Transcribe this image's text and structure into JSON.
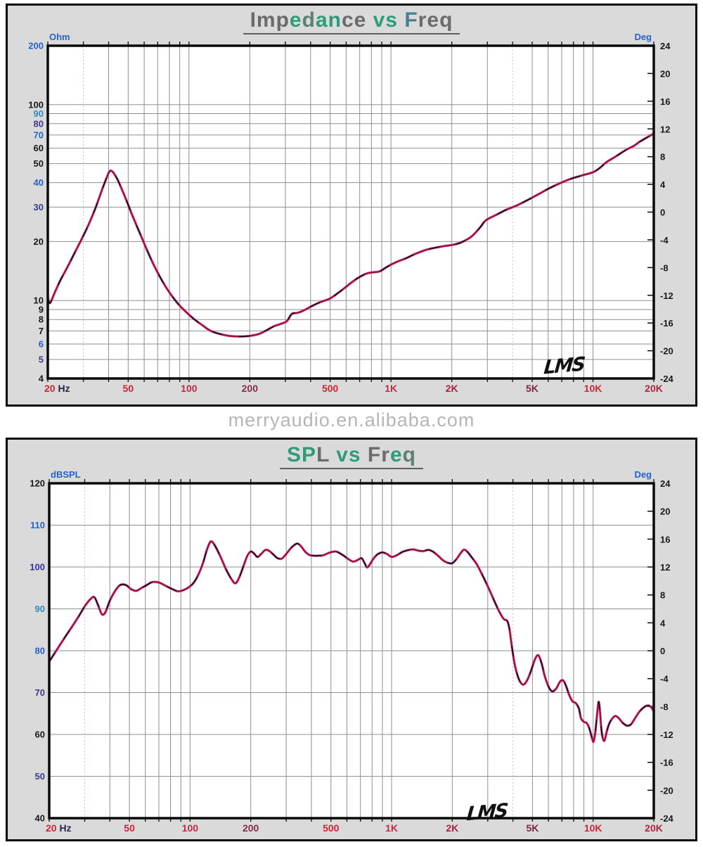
{
  "watermark": "merryaudio.en.alibaba.com",
  "chart_data": [
    {
      "type": "line",
      "title": "Impedance vs Freq",
      "title_letter_colors": [
        "#6b6b6b",
        "#6b6b6b",
        "#6b6b6b",
        "#2e9c7c",
        "#5d8077",
        "#2e9c7c",
        "#2e9c7c",
        "#6b6b6b",
        "#6b6b6b",
        "",
        "#2e9c7c",
        "#2e9c7c",
        "",
        "#47808f",
        "#6b6b6b",
        "#6b6b6b",
        "#6b6b6b"
      ],
      "logo": "LMS",
      "x_axis": {
        "scale": "log",
        "min": 20,
        "max": 20000,
        "minor": [
          20,
          30,
          40,
          50,
          60,
          70,
          80,
          90,
          100,
          200,
          300,
          400,
          500,
          600,
          700,
          800,
          900,
          1000,
          2000,
          3000,
          4000,
          5000,
          6000,
          7000,
          8000,
          9000,
          10000,
          20000
        ],
        "dotted": [
          30,
          4000
        ],
        "ticks": [
          {
            "f": 20,
            "label": "20",
            "color": "#cf2438",
            "suffix": " Hz",
            "suffix_color": "#26264f"
          },
          {
            "f": 50,
            "label": "50",
            "color": "#cf2438"
          },
          {
            "f": 100,
            "label": "100",
            "color": "#c22a48"
          },
          {
            "f": 200,
            "label": "200",
            "color": "#8c2a4a"
          },
          {
            "f": 500,
            "label": "500",
            "color": "#cf2438"
          },
          {
            "f": 1000,
            "label": "1K",
            "color": "#c22a48"
          },
          {
            "f": 2000,
            "label": "2K",
            "color": "#a82442"
          },
          {
            "f": 5000,
            "label": "5K",
            "color": "#7d2746"
          },
          {
            "f": 10000,
            "label": "10K",
            "color": "#cf2438"
          },
          {
            "f": 20000,
            "label": "20K",
            "color": "#b0243f"
          }
        ]
      },
      "y_left": {
        "unit": "Ohm",
        "unit_color": "#2563c9",
        "scale": "log",
        "min": 4,
        "max": 200,
        "ticks": [
          {
            "v": 200,
            "color": "#2563c9"
          },
          {
            "v": 100,
            "color": "#1a1a1a"
          },
          {
            "v": 90,
            "color": "#2b8fbf"
          },
          {
            "v": 80,
            "color": "#3b3b8f"
          },
          {
            "v": 70,
            "color": "#2563c9"
          },
          {
            "v": 60,
            "color": "#1a1a1a"
          },
          {
            "v": 50,
            "color": "#1a1a1a"
          },
          {
            "v": 40,
            "color": "#2563c9"
          },
          {
            "v": 30,
            "color": "#3b3b8f"
          },
          {
            "v": 20,
            "color": "#1a1a1a"
          },
          {
            "v": 10,
            "color": "#1a1a1a"
          },
          {
            "v": 9,
            "color": "#1a1a1a"
          },
          {
            "v": 8,
            "color": "#1a1a1a"
          },
          {
            "v": 7,
            "color": "#1a1a1a"
          },
          {
            "v": 6,
            "color": "#2563c9"
          },
          {
            "v": 5,
            "color": "#3b3b8f"
          },
          {
            "v": 4,
            "color": "#1a1a1a"
          }
        ]
      },
      "y_right": {
        "unit": "Deg",
        "unit_color": "#2563c9",
        "scale": "linear",
        "min": -24,
        "max": 24,
        "step": 4,
        "color": "#1a1a1a"
      },
      "curve_colors": {
        "underlay": "#f040e8",
        "main": "#9c1030",
        "dash": "#141414"
      },
      "series": [
        {
          "name": "impedance-ohm",
          "x": [
            20,
            20.5,
            21.5,
            23,
            25,
            27,
            29,
            31,
            33,
            35,
            37,
            39,
            40.5,
            42,
            44,
            46,
            49,
            52,
            55,
            59,
            63,
            68,
            74,
            80,
            87,
            95,
            105,
            116,
            128,
            142,
            158,
            178,
            200,
            222,
            245,
            264,
            285,
            305,
            323,
            345,
            370,
            400,
            435,
            470,
            500,
            545,
            590,
            640,
            700,
            760,
            820,
            880,
            960,
            1060,
            1180,
            1320,
            1480,
            1650,
            1850,
            2050,
            2250,
            2500,
            2750,
            2950,
            3300,
            3700,
            4200,
            4800,
            5400,
            6100,
            6900,
            7800,
            8800,
            10000,
            10800,
            11700,
            13000,
            14500,
            16000,
            17000,
            18500,
            20000
          ],
          "y": [
            10.4,
            9.7,
            10.8,
            12.6,
            14.8,
            17.3,
            20,
            23,
            26.6,
            31,
            36.5,
            42,
            45.8,
            45.3,
            42,
            38,
            32.5,
            27.8,
            24.2,
            20.4,
            17.4,
            14.7,
            12.5,
            11,
            9.8,
            8.9,
            8.1,
            7.5,
            7.0,
            6.75,
            6.6,
            6.55,
            6.6,
            6.75,
            7.1,
            7.4,
            7.6,
            7.85,
            8.55,
            8.65,
            8.9,
            9.3,
            9.7,
            10.0,
            10.25,
            10.9,
            11.6,
            12.4,
            13.2,
            13.75,
            13.95,
            14.1,
            14.9,
            15.7,
            16.4,
            17.3,
            18.1,
            18.6,
            19.0,
            19.3,
            19.9,
            21.2,
            23.5,
            25.7,
            27.3,
            29.0,
            30.6,
            32.8,
            35.0,
            37.5,
            39.8,
            41.9,
            43.5,
            45.2,
            47.5,
            51.0,
            54.5,
            58.6,
            61.8,
            64.6,
            68,
            71.2
          ]
        }
      ]
    },
    {
      "type": "line",
      "title": "SPL vs Freq",
      "title_letter_colors": [
        "#2e9c7c",
        "#2e9c7c",
        "#6b6b6b",
        "",
        "#2e9c7c",
        "#2e9c7c",
        "",
        "#6b6b6b",
        "#6b6b6b",
        "#2e9c7c",
        "#5d8077"
      ],
      "logo": "LMS",
      "x_axis": {
        "scale": "log",
        "min": 20,
        "max": 20000,
        "minor": [
          20,
          30,
          40,
          50,
          60,
          70,
          80,
          90,
          100,
          200,
          300,
          400,
          500,
          600,
          700,
          800,
          900,
          1000,
          2000,
          3000,
          4000,
          5000,
          6000,
          7000,
          8000,
          9000,
          10000,
          20000
        ],
        "dotted": [
          30,
          4000
        ],
        "ticks": [
          {
            "f": 20,
            "label": "20",
            "color": "#cf2438",
            "suffix": " Hz",
            "suffix_color": "#26264f"
          },
          {
            "f": 50,
            "label": "50",
            "color": "#cf2438"
          },
          {
            "f": 100,
            "label": "100",
            "color": "#c22a48"
          },
          {
            "f": 200,
            "label": "200",
            "color": "#8c2a4a"
          },
          {
            "f": 500,
            "label": "500",
            "color": "#cf2438"
          },
          {
            "f": 1000,
            "label": "1K",
            "color": "#c22a48"
          },
          {
            "f": 2000,
            "label": "2K",
            "color": "#a82442"
          },
          {
            "f": 5000,
            "label": "5K",
            "color": "#7d2746"
          },
          {
            "f": 10000,
            "label": "10K",
            "color": "#cf2438"
          },
          {
            "f": 20000,
            "label": "20K",
            "color": "#b0243f"
          }
        ]
      },
      "y_left": {
        "unit": "dBSPL",
        "unit_color": "#2563c9",
        "scale": "linear",
        "min": 40,
        "max": 120,
        "ticks": [
          {
            "v": 120,
            "color": "#1a1a1a"
          },
          {
            "v": 110,
            "color": "#2563c9"
          },
          {
            "v": 100,
            "color": "#32329a"
          },
          {
            "v": 90,
            "color": "#2b8fbf"
          },
          {
            "v": 80,
            "color": "#2563c9"
          },
          {
            "v": 70,
            "color": "#3b3b8f"
          },
          {
            "v": 60,
            "color": "#1a1a1a"
          },
          {
            "v": 50,
            "color": "#3b3b8f"
          },
          {
            "v": 40,
            "color": "#1a1a1a"
          }
        ]
      },
      "y_right": {
        "unit": "Deg",
        "unit_color": "#2563c9",
        "scale": "linear",
        "min": -24,
        "max": 24,
        "step": 4,
        "color": "#1a1a1a"
      },
      "curve_colors": {
        "underlay": "#f040e8",
        "main": "#9c1030",
        "dash": "#141414"
      },
      "series": [
        {
          "name": "spl-db",
          "x": [
            20,
            22,
            24,
            26,
            28,
            30,
            32,
            33.5,
            35,
            36.5,
            38,
            40,
            42.5,
            45,
            48,
            51,
            54,
            57,
            61,
            65,
            70,
            75,
            81,
            87,
            93,
            98,
            104,
            110,
            116,
            121,
            126,
            130,
            136,
            143,
            151,
            160,
            168,
            176,
            184,
            192,
            200,
            208,
            216,
            226,
            237,
            248,
            260,
            272,
            285,
            300,
            315,
            330,
            342,
            356,
            372,
            390,
            410,
            432,
            458,
            490,
            530,
            570,
            610,
            645,
            680,
            710,
            735,
            755,
            780,
            810,
            850,
            900,
            950,
            1000,
            1060,
            1130,
            1200,
            1280,
            1360,
            1440,
            1520,
            1600,
            1700,
            1800,
            1900,
            2000,
            2100,
            2200,
            2280,
            2360,
            2500,
            2650,
            2800,
            3000,
            3200,
            3400,
            3600,
            3750,
            3850,
            3950,
            4100,
            4300,
            4500,
            4700,
            4900,
            5150,
            5350,
            5550,
            5750,
            6000,
            6250,
            6550,
            6850,
            7100,
            7350,
            7600,
            7900,
            8200,
            8500,
            8700,
            9000,
            9300,
            9600,
            9900,
            10050,
            10250,
            10500,
            10650,
            10800,
            11000,
            11200,
            11400,
            11700,
            12000,
            12400,
            12900,
            13400,
            14000,
            14700,
            15400,
            16200,
            17000,
            18000,
            18800,
            19400,
            20000
          ],
          "y": [
            77.4,
            80.5,
            83.3,
            85.8,
            88.2,
            90.6,
            92.3,
            92.8,
            90.8,
            88.7,
            89.2,
            92.0,
            94.3,
            95.7,
            95.7,
            94.7,
            94.3,
            94.9,
            95.7,
            96.4,
            96.3,
            95.6,
            94.8,
            94.2,
            94.5,
            95.1,
            96.2,
            98.2,
            101.0,
            104.0,
            106.0,
            105.8,
            104.2,
            102.0,
            99.4,
            97.2,
            96.1,
            97.7,
            100.2,
            102.6,
            103.7,
            103.2,
            102.4,
            103.2,
            104.1,
            103.8,
            102.9,
            102.1,
            102.0,
            103.1,
            104.4,
            105.3,
            105.6,
            104.9,
            103.7,
            102.9,
            102.7,
            102.7,
            102.8,
            103.4,
            103.7,
            102.9,
            101.9,
            101.3,
            101.7,
            102.1,
            100.9,
            99.9,
            100.6,
            101.9,
            103.0,
            103.5,
            103.1,
            102.4,
            102.8,
            103.6,
            104.0,
            104.2,
            103.9,
            103.8,
            104.1,
            103.7,
            102.7,
            101.6,
            101.0,
            100.9,
            101.9,
            103.3,
            104.1,
            103.8,
            102.3,
            100.6,
            98.4,
            95.4,
            92.4,
            89.6,
            87.6,
            87.1,
            85.0,
            81.0,
            76.3,
            73.0,
            71.9,
            72.9,
            75.0,
            78.0,
            78.9,
            77.0,
            74.0,
            71.5,
            70.3,
            70.9,
            72.6,
            72.9,
            71.5,
            69.5,
            67.9,
            67.5,
            66.2,
            63.9,
            63.0,
            62.7,
            61.3,
            58.9,
            58.3,
            60.5,
            65.5,
            67.8,
            65.8,
            61.0,
            58.9,
            58.6,
            60.8,
            62.5,
            63.7,
            64.4,
            63.9,
            62.8,
            62.1,
            62.4,
            64.0,
            65.5,
            66.6,
            66.9,
            66.5,
            65.5
          ]
        }
      ]
    }
  ]
}
